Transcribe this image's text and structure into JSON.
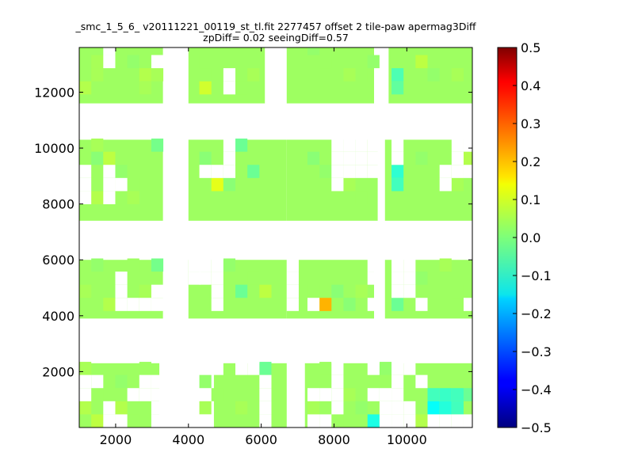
{
  "chart_data": {
    "type": "heatmap",
    "title": "_smc_1_5_6_ v20111221_00119_st_tl.fit 2277457 offset 2 tile-paw apermag3Diff",
    "subtitle": "zpDiff= 0.02 seeingDiff=0.57",
    "xlabel": "",
    "ylabel": "",
    "xlim": [
      1000,
      11800
    ],
    "ylim": [
      0,
      13600
    ],
    "cell_size": [
      330,
      470
    ],
    "x_ticks": [
      2000,
      4000,
      6000,
      8000,
      10000
    ],
    "x_tick_labels": [
      "2000",
      "4000",
      "6000",
      "8000",
      "10000"
    ],
    "y_ticks": [
      2000,
      4000,
      6000,
      8000,
      10000,
      12000
    ],
    "y_tick_labels": [
      "2000",
      "4000",
      "6000",
      "8000",
      "10000",
      "12000"
    ],
    "colorbar": {
      "colormap": "jet",
      "vmin": -0.5,
      "vmax": 0.5,
      "ticks": [
        0.5,
        0.4,
        0.3,
        0.2,
        0.1,
        0.0,
        -0.1,
        -0.2,
        -0.3,
        -0.4,
        -0.5
      ],
      "tick_labels": [
        "0.5",
        "0.4",
        "0.3",
        "0.2",
        "0.1",
        "0.0",
        "−0.1",
        "−0.2",
        "−0.3",
        "−0.4",
        "−0.5"
      ]
    },
    "bands": [
      {
        "y_range": [
          0,
          2300
        ],
        "segments": [
          [
            1000,
            3200
          ],
          [
            4700,
            6700
          ],
          [
            7200,
            9700
          ],
          [
            9700,
            11800
          ]
        ]
      },
      {
        "y_range": [
          3900,
          6000
        ],
        "segments": [
          [
            1000,
            3300
          ],
          [
            4000,
            6700
          ],
          [
            6700,
            9100
          ],
          [
            9400,
            11800
          ]
        ]
      },
      {
        "y_range": [
          7400,
          10300
        ],
        "segments": [
          [
            1000,
            3300
          ],
          [
            4000,
            6700
          ],
          [
            6700,
            9200
          ],
          [
            9400,
            11800
          ]
        ]
      },
      {
        "y_range": [
          11600,
          13600
        ],
        "segments": [
          [
            1000,
            3300
          ],
          [
            4000,
            6100
          ],
          [
            6700,
            9100
          ],
          [
            9500,
            11800
          ]
        ]
      }
    ],
    "cells": [
      {
        "x": 1330,
        "y": 13330,
        "v": 0.03
      },
      {
        "x": 1330,
        "y": 12860,
        "v": 0.04
      },
      {
        "x": 1000,
        "y": 12390,
        "v": 0.03
      },
      {
        "x": 1330,
        "y": 12390,
        "v": 0.04
      },
      {
        "x": 1000,
        "y": 11920,
        "v": 0.05
      },
      {
        "x": 1990,
        "y": 13330,
        "v": 0.03
      },
      {
        "x": 2320,
        "y": 12860,
        "v": 0.02
      },
      {
        "x": 2650,
        "y": 12860,
        "v": 0.03
      },
      {
        "x": 2650,
        "y": 12390,
        "v": 0.05
      },
      {
        "x": 2650,
        "y": 11920,
        "v": 0.04
      },
      {
        "x": 2980,
        "y": 12390,
        "v": 0.04
      },
      {
        "x": 4300,
        "y": 12860,
        "v": 0.03
      },
      {
        "x": 4630,
        "y": 12390,
        "v": 0.03
      },
      {
        "x": 4300,
        "y": 11920,
        "v": 0.08
      },
      {
        "x": 5290,
        "y": 11920,
        "v": 0.03
      },
      {
        "x": 5620,
        "y": 12390,
        "v": 0.04
      },
      {
        "x": 7270,
        "y": 13330,
        "v": 0.02
      },
      {
        "x": 7600,
        "y": 12860,
        "v": 0.03
      },
      {
        "x": 8260,
        "y": 12390,
        "v": 0.04
      },
      {
        "x": 8590,
        "y": 12390,
        "v": 0.03
      },
      {
        "x": 8920,
        "y": 12860,
        "v": 0.02
      },
      {
        "x": 9580,
        "y": 12390,
        "v": -0.05
      },
      {
        "x": 9580,
        "y": 11920,
        "v": -0.03
      },
      {
        "x": 10240,
        "y": 12860,
        "v": 0.06
      },
      {
        "x": 10570,
        "y": 12390,
        "v": 0.02
      },
      {
        "x": 11230,
        "y": 12390,
        "v": 0.04
      },
      {
        "x": 1330,
        "y": 9870,
        "v": 0.04
      },
      {
        "x": 1330,
        "y": 9400,
        "v": 0.01
      },
      {
        "x": 1660,
        "y": 9400,
        "v": 0.06
      },
      {
        "x": 1330,
        "y": 7990,
        "v": 0.05
      },
      {
        "x": 1990,
        "y": 8930,
        "v": 0.02
      },
      {
        "x": 2320,
        "y": 8460,
        "v": 0.03
      },
      {
        "x": 2320,
        "y": 7990,
        "v": 0.04
      },
      {
        "x": 2980,
        "y": 9870,
        "v": -0.01
      },
      {
        "x": 4300,
        "y": 9400,
        "v": 0.01
      },
      {
        "x": 4630,
        "y": 8460,
        "v": 0.1
      },
      {
        "x": 4960,
        "y": 8460,
        "v": 0.01
      },
      {
        "x": 5290,
        "y": 9870,
        "v": -0.02
      },
      {
        "x": 5620,
        "y": 8930,
        "v": -0.02
      },
      {
        "x": 7270,
        "y": 9400,
        "v": 0.01
      },
      {
        "x": 7600,
        "y": 8930,
        "v": 0.02
      },
      {
        "x": 8260,
        "y": 8460,
        "v": 0.04
      },
      {
        "x": 8590,
        "y": 7990,
        "v": 0.03
      },
      {
        "x": 9580,
        "y": 8930,
        "v": -0.08
      },
      {
        "x": 9580,
        "y": 8460,
        "v": -0.06
      },
      {
        "x": 10240,
        "y": 9400,
        "v": 0.02
      },
      {
        "x": 11230,
        "y": 8460,
        "v": 0.04
      },
      {
        "x": 11560,
        "y": 9400,
        "v": 0.05
      },
      {
        "x": 1000,
        "y": 4640,
        "v": 0.04
      },
      {
        "x": 1330,
        "y": 5580,
        "v": 0.02
      },
      {
        "x": 1660,
        "y": 4170,
        "v": 0.05
      },
      {
        "x": 2320,
        "y": 5580,
        "v": 0.03
      },
      {
        "x": 2650,
        "y": 4640,
        "v": 0.04
      },
      {
        "x": 2980,
        "y": 5580,
        "v": -0.01
      },
      {
        "x": 4960,
        "y": 5580,
        "v": 0.02
      },
      {
        "x": 5290,
        "y": 4640,
        "v": -0.02
      },
      {
        "x": 5620,
        "y": 5110,
        "v": 0.03
      },
      {
        "x": 5950,
        "y": 4640,
        "v": 0.06
      },
      {
        "x": 7600,
        "y": 4170,
        "v": 0.2
      },
      {
        "x": 7270,
        "y": 4640,
        "v": 0.03
      },
      {
        "x": 7930,
        "y": 4640,
        "v": 0.01
      },
      {
        "x": 8260,
        "y": 4170,
        "v": 0.01
      },
      {
        "x": 8590,
        "y": 4640,
        "v": 0.04
      },
      {
        "x": 9580,
        "y": 4170,
        "v": -0.02
      },
      {
        "x": 10240,
        "y": 5110,
        "v": 0.02
      },
      {
        "x": 10900,
        "y": 5580,
        "v": 0.04
      },
      {
        "x": 11230,
        "y": 4640,
        "v": 0.03
      },
      {
        "x": 1000,
        "y": 1880,
        "v": 0.04
      },
      {
        "x": 1330,
        "y": 940,
        "v": 0.03
      },
      {
        "x": 1000,
        "y": 470,
        "v": 0.05
      },
      {
        "x": 1330,
        "y": 0,
        "v": 0.06
      },
      {
        "x": 1990,
        "y": 1410,
        "v": 0.02
      },
      {
        "x": 1990,
        "y": 470,
        "v": 0.05
      },
      {
        "x": 2320,
        "y": 0,
        "v": 0.03
      },
      {
        "x": 2650,
        "y": 1880,
        "v": 0.03
      },
      {
        "x": 4300,
        "y": 1410,
        "v": 0.02
      },
      {
        "x": 4300,
        "y": 470,
        "v": 0.04
      },
      {
        "x": 4630,
        "y": 940,
        "v": 0.03
      },
      {
        "x": 5290,
        "y": 470,
        "v": 0.04
      },
      {
        "x": 5950,
        "y": 1880,
        "v": -0.02
      },
      {
        "x": 7270,
        "y": 470,
        "v": 0.04
      },
      {
        "x": 7600,
        "y": 1880,
        "v": 0.03
      },
      {
        "x": 7930,
        "y": 0,
        "v": 0.03
      },
      {
        "x": 8260,
        "y": 940,
        "v": 0.04
      },
      {
        "x": 8590,
        "y": 470,
        "v": 0.02
      },
      {
        "x": 8920,
        "y": 0,
        "v": -0.1
      },
      {
        "x": 9250,
        "y": 1880,
        "v": 0.02
      },
      {
        "x": 10240,
        "y": 0,
        "v": 0.05
      },
      {
        "x": 10570,
        "y": 940,
        "v": -0.06
      },
      {
        "x": 10570,
        "y": 470,
        "v": -0.12
      },
      {
        "x": 10900,
        "y": 940,
        "v": -0.07
      },
      {
        "x": 10900,
        "y": 470,
        "v": -0.09
      },
      {
        "x": 11230,
        "y": 940,
        "v": -0.06
      },
      {
        "x": 11230,
        "y": 470,
        "v": -0.06
      },
      {
        "x": 11560,
        "y": 940,
        "v": -0.02
      }
    ],
    "empty_cells": [
      {
        "x": 1660,
        "y": 13330
      },
      {
        "x": 1660,
        "y": 12860
      },
      {
        "x": 2980,
        "y": 12860
      },
      {
        "x": 4960,
        "y": 11920
      },
      {
        "x": 4960,
        "y": 12390
      },
      {
        "x": 1000,
        "y": 7990
      },
      {
        "x": 1660,
        "y": 7990
      },
      {
        "x": 1000,
        "y": 8460
      },
      {
        "x": 1000,
        "y": 8930
      },
      {
        "x": 1660,
        "y": 8460
      },
      {
        "x": 1990,
        "y": 8460
      },
      {
        "x": 1660,
        "y": 8930
      },
      {
        "x": 4630,
        "y": 8930
      },
      {
        "x": 4300,
        "y": 8930
      },
      {
        "x": 4960,
        "y": 8930
      },
      {
        "x": 4960,
        "y": 9400
      },
      {
        "x": 4960,
        "y": 9870
      },
      {
        "x": 7930,
        "y": 8460
      },
      {
        "x": 7930,
        "y": 8930
      },
      {
        "x": 8260,
        "y": 8930
      },
      {
        "x": 8590,
        "y": 8930
      },
      {
        "x": 8590,
        "y": 9400
      },
      {
        "x": 8260,
        "y": 9400
      },
      {
        "x": 7930,
        "y": 9400
      },
      {
        "x": 8590,
        "y": 9870
      },
      {
        "x": 8260,
        "y": 9870
      },
      {
        "x": 7930,
        "y": 9870
      },
      {
        "x": 8920,
        "y": 9870
      },
      {
        "x": 8920,
        "y": 9400
      },
      {
        "x": 8920,
        "y": 8930
      },
      {
        "x": 9580,
        "y": 9870
      },
      {
        "x": 9580,
        "y": 9400
      },
      {
        "x": 10900,
        "y": 8930
      },
      {
        "x": 10900,
        "y": 8460
      },
      {
        "x": 11230,
        "y": 9400
      },
      {
        "x": 11230,
        "y": 8930
      },
      {
        "x": 11230,
        "y": 9870
      },
      {
        "x": 11560,
        "y": 9870
      },
      {
        "x": 11560,
        "y": 8930
      },
      {
        "x": 1990,
        "y": 5110
      },
      {
        "x": 1990,
        "y": 4640
      },
      {
        "x": 1990,
        "y": 4170
      },
      {
        "x": 2320,
        "y": 4170
      },
      {
        "x": 2650,
        "y": 4170
      },
      {
        "x": 2980,
        "y": 4170
      },
      {
        "x": 2980,
        "y": 4640
      },
      {
        "x": 4000,
        "y": 5580
      },
      {
        "x": 4000,
        "y": 5110
      },
      {
        "x": 4300,
        "y": 5580
      },
      {
        "x": 4300,
        "y": 5110
      },
      {
        "x": 4630,
        "y": 5580
      },
      {
        "x": 4630,
        "y": 5110
      },
      {
        "x": 4630,
        "y": 4640
      },
      {
        "x": 4630,
        "y": 4170
      },
      {
        "x": 6700,
        "y": 4170
      },
      {
        "x": 6700,
        "y": 4640
      },
      {
        "x": 6700,
        "y": 5110
      },
      {
        "x": 6700,
        "y": 5580
      },
      {
        "x": 7270,
        "y": 4170
      },
      {
        "x": 8920,
        "y": 4170
      },
      {
        "x": 8920,
        "y": 5580
      },
      {
        "x": 8920,
        "y": 5110
      },
      {
        "x": 9580,
        "y": 5580
      },
      {
        "x": 9580,
        "y": 5110
      },
      {
        "x": 9580,
        "y": 4640
      },
      {
        "x": 9910,
        "y": 4640
      },
      {
        "x": 9910,
        "y": 5110
      },
      {
        "x": 9910,
        "y": 5580
      },
      {
        "x": 10240,
        "y": 4170
      },
      {
        "x": 11560,
        "y": 4170
      },
      {
        "x": 1000,
        "y": 1410
      },
      {
        "x": 1000,
        "y": 940
      },
      {
        "x": 1330,
        "y": 1410
      },
      {
        "x": 1660,
        "y": 470
      },
      {
        "x": 1660,
        "y": 0
      },
      {
        "x": 1990,
        "y": 0
      },
      {
        "x": 2320,
        "y": 940
      },
      {
        "x": 2650,
        "y": 940
      },
      {
        "x": 2980,
        "y": 0
      },
      {
        "x": 2980,
        "y": 470
      },
      {
        "x": 2980,
        "y": 940
      },
      {
        "x": 2980,
        "y": 1410
      },
      {
        "x": 2650,
        "y": 1410
      },
      {
        "x": 4630,
        "y": 1880
      },
      {
        "x": 4300,
        "y": 0
      },
      {
        "x": 5950,
        "y": 470
      },
      {
        "x": 5950,
        "y": 0
      },
      {
        "x": 5950,
        "y": 940
      },
      {
        "x": 5950,
        "y": 1410
      },
      {
        "x": 5620,
        "y": 1880
      },
      {
        "x": 5290,
        "y": 1880
      },
      {
        "x": 7270,
        "y": 940
      },
      {
        "x": 7270,
        "y": 0
      },
      {
        "x": 7600,
        "y": 0
      },
      {
        "x": 7600,
        "y": 940
      },
      {
        "x": 7930,
        "y": 1410
      },
      {
        "x": 7930,
        "y": 940
      },
      {
        "x": 7930,
        "y": 1880
      },
      {
        "x": 7930,
        "y": 470
      },
      {
        "x": 8920,
        "y": 940
      },
      {
        "x": 8920,
        "y": 1880
      },
      {
        "x": 9250,
        "y": 0
      },
      {
        "x": 9250,
        "y": 470
      },
      {
        "x": 9250,
        "y": 940
      },
      {
        "x": 9580,
        "y": 0
      },
      {
        "x": 9580,
        "y": 470
      },
      {
        "x": 9580,
        "y": 940
      },
      {
        "x": 9580,
        "y": 1410
      },
      {
        "x": 9580,
        "y": 1880
      },
      {
        "x": 9910,
        "y": 0
      },
      {
        "x": 9910,
        "y": 470
      },
      {
        "x": 10240,
        "y": 1410
      },
      {
        "x": 9910,
        "y": 1880
      },
      {
        "x": 10570,
        "y": 0
      },
      {
        "x": 10900,
        "y": 0
      },
      {
        "x": 11230,
        "y": 0
      },
      {
        "x": 11560,
        "y": 0
      }
    ]
  }
}
